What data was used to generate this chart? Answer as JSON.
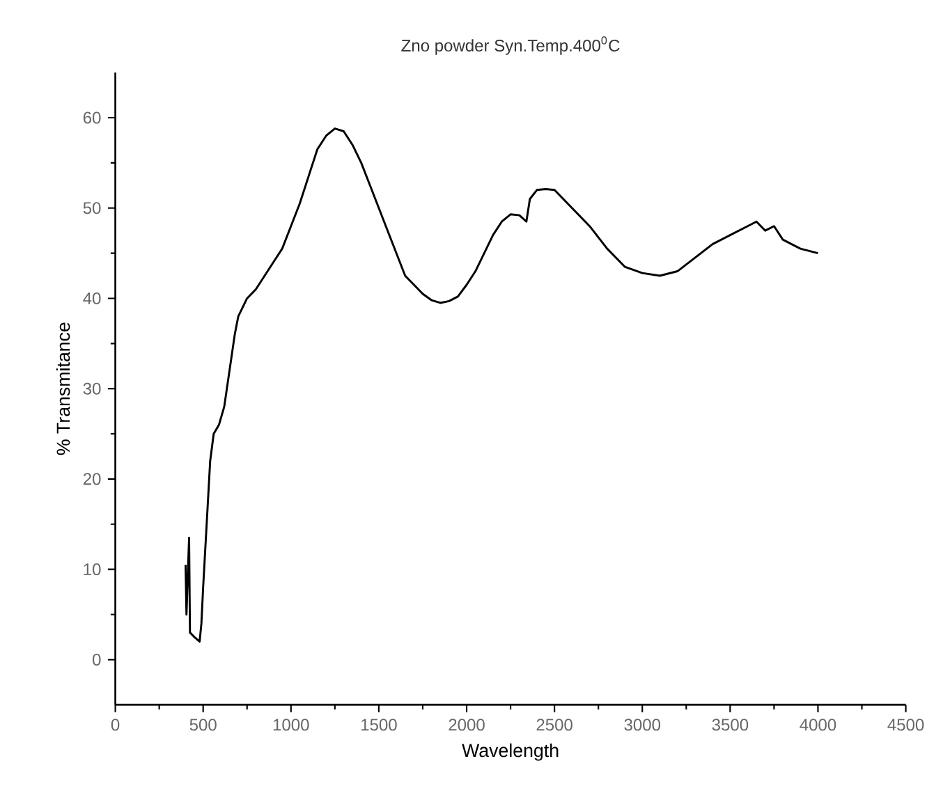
{
  "chart_data": {
    "type": "line",
    "title": "Zno powder Syn.Temp.400$^{0}$C",
    "xlabel": "Wavelength",
    "ylabel": "% Transmitance",
    "xlim": [
      0,
      4500
    ],
    "xticks": [
      0,
      500,
      1000,
      1500,
      2000,
      2500,
      3000,
      3500,
      4000,
      4500
    ],
    "ylim": [
      -5,
      65
    ],
    "yticks": [
      0,
      10,
      20,
      30,
      40,
      50,
      60
    ],
    "marker": "none",
    "line_style": "solid",
    "series": [
      {
        "color": "#000000",
        "x": [
          400,
          405,
          420,
          425,
          450,
          480,
          490,
          500,
          520,
          540,
          560,
          590,
          620,
          650,
          680,
          700,
          750,
          800,
          850,
          900,
          950,
          1000,
          1050,
          1100,
          1150,
          1200,
          1250,
          1300,
          1350,
          1400,
          1450,
          1500,
          1550,
          1600,
          1650,
          1700,
          1750,
          1800,
          1850,
          1900,
          1950,
          2000,
          2050,
          2100,
          2150,
          2200,
          2250,
          2300,
          2340,
          2360,
          2400,
          2450,
          2500,
          2550,
          2600,
          2700,
          2800,
          2900,
          3000,
          3100,
          3200,
          3300,
          3400,
          3500,
          3600,
          3650,
          3700,
          3750,
          3800,
          3850,
          3900,
          4000
        ],
        "values": [
          10.5,
          5,
          13.5,
          3,
          2.5,
          2,
          4,
          8,
          15,
          22,
          25,
          26,
          28,
          32,
          36,
          38,
          40,
          41,
          42.5,
          44,
          45.5,
          48,
          50.5,
          53.5,
          56.5,
          58,
          58.8,
          58.5,
          57,
          55,
          52.5,
          50,
          47.5,
          45,
          42.5,
          41.5,
          40.5,
          39.8,
          39.5,
          39.7,
          40.2,
          41.5,
          43,
          45,
          47,
          48.5,
          49.3,
          49.2,
          48.5,
          51,
          52,
          52.1,
          52,
          51,
          50,
          48,
          45.5,
          43.5,
          42.8,
          42.5,
          43,
          44.5,
          46,
          47,
          48,
          48.5,
          47.5,
          48,
          46.5,
          46,
          45.5,
          45
        ]
      }
    ]
  }
}
